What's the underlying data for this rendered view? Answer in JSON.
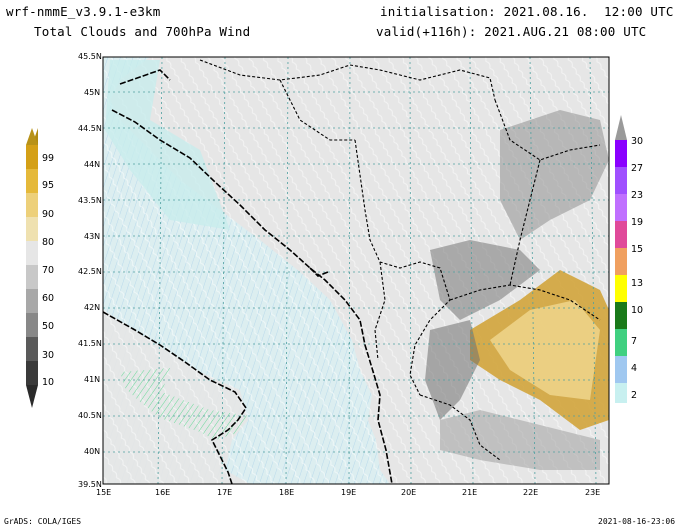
{
  "header": {
    "model": "wrf-nmmE_v3.9.1-e3km",
    "field": "Total Clouds and 700hPa Wind",
    "init": "initialisation: 2021.08.16.  12:00 UTC",
    "valid": "valid(+116h): 2021.AUG.21 08:00 UTC"
  },
  "footer": {
    "left": "GrADS: COLA/IGES",
    "right": "2021-08-16-23:06"
  },
  "axes": {
    "lon_ticks": [
      "15E",
      "16E",
      "17E",
      "18E",
      "19E",
      "20E",
      "21E",
      "22E",
      "23E"
    ],
    "lat_ticks": [
      "45.5N",
      "45N",
      "44.5N",
      "44N",
      "43.5N",
      "43N",
      "42.5N",
      "42N",
      "41.5N",
      "41N",
      "40.5N",
      "40N",
      "39.5N"
    ]
  },
  "cloud_colorbar": {
    "labels": [
      "99",
      "95",
      "90",
      "80",
      "70",
      "60",
      "50",
      "30",
      "10"
    ],
    "colors": [
      "#d4a017",
      "#e5b93a",
      "#edd07a",
      "#efe1b0",
      "#e6e6e6",
      "#c8c8c8",
      "#a8a8a8",
      "#888888",
      "#5a5a5a"
    ]
  },
  "wind_colorbar": {
    "labels": [
      "30",
      "27",
      "23",
      "19",
      "15",
      "13",
      "10",
      "7",
      "4",
      "2"
    ],
    "colors": [
      "#8a00ff",
      "#a050ff",
      "#c070ff",
      "#e04a9a",
      "#f0a060",
      "#ffff00",
      "#1a7a1a",
      "#40d080",
      "#a0c8f0",
      "#c8f0f0"
    ]
  },
  "colors": {
    "sea": "#d8eef0",
    "land": "#e4e4e4",
    "coast": "#000000",
    "grid": "#4fa0a0"
  }
}
